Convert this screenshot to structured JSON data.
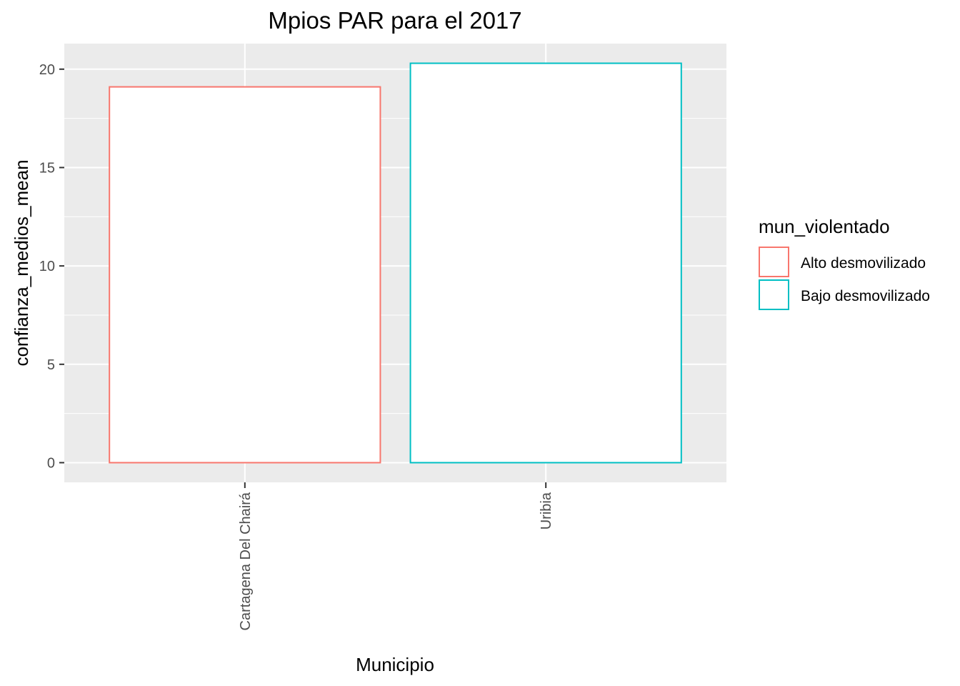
{
  "chart_data": {
    "type": "bar",
    "title": "Mpios PAR para el 2017",
    "xlabel": "Municipio",
    "ylabel": "confianza_medios_mean",
    "categories": [
      "Cartagena Del Chairá",
      "Uribia"
    ],
    "values": [
      19.1,
      20.3
    ],
    "fill_groups": [
      "Alto desmovilizado",
      "Bajo desmovilizado"
    ],
    "ylim": [
      -1,
      21.3
    ],
    "yticks": [
      0,
      5,
      10,
      15,
      20
    ],
    "ytick_labels": [
      "0",
      "5",
      "10",
      "15",
      "20"
    ],
    "grid": true,
    "x_tick_label_rotation": "vertical",
    "legend": {
      "title": "mun_violentado",
      "position": "right",
      "entries": [
        {
          "label": "Alto desmovilizado",
          "color": "#F8766D"
        },
        {
          "label": "Bajo desmovilizado",
          "color": "#00BFC4"
        }
      ]
    },
    "colors": {
      "panel_background": "#EBEBEB",
      "grid_major": "#FFFFFF",
      "bar_fill": "#FFFFFF"
    }
  }
}
